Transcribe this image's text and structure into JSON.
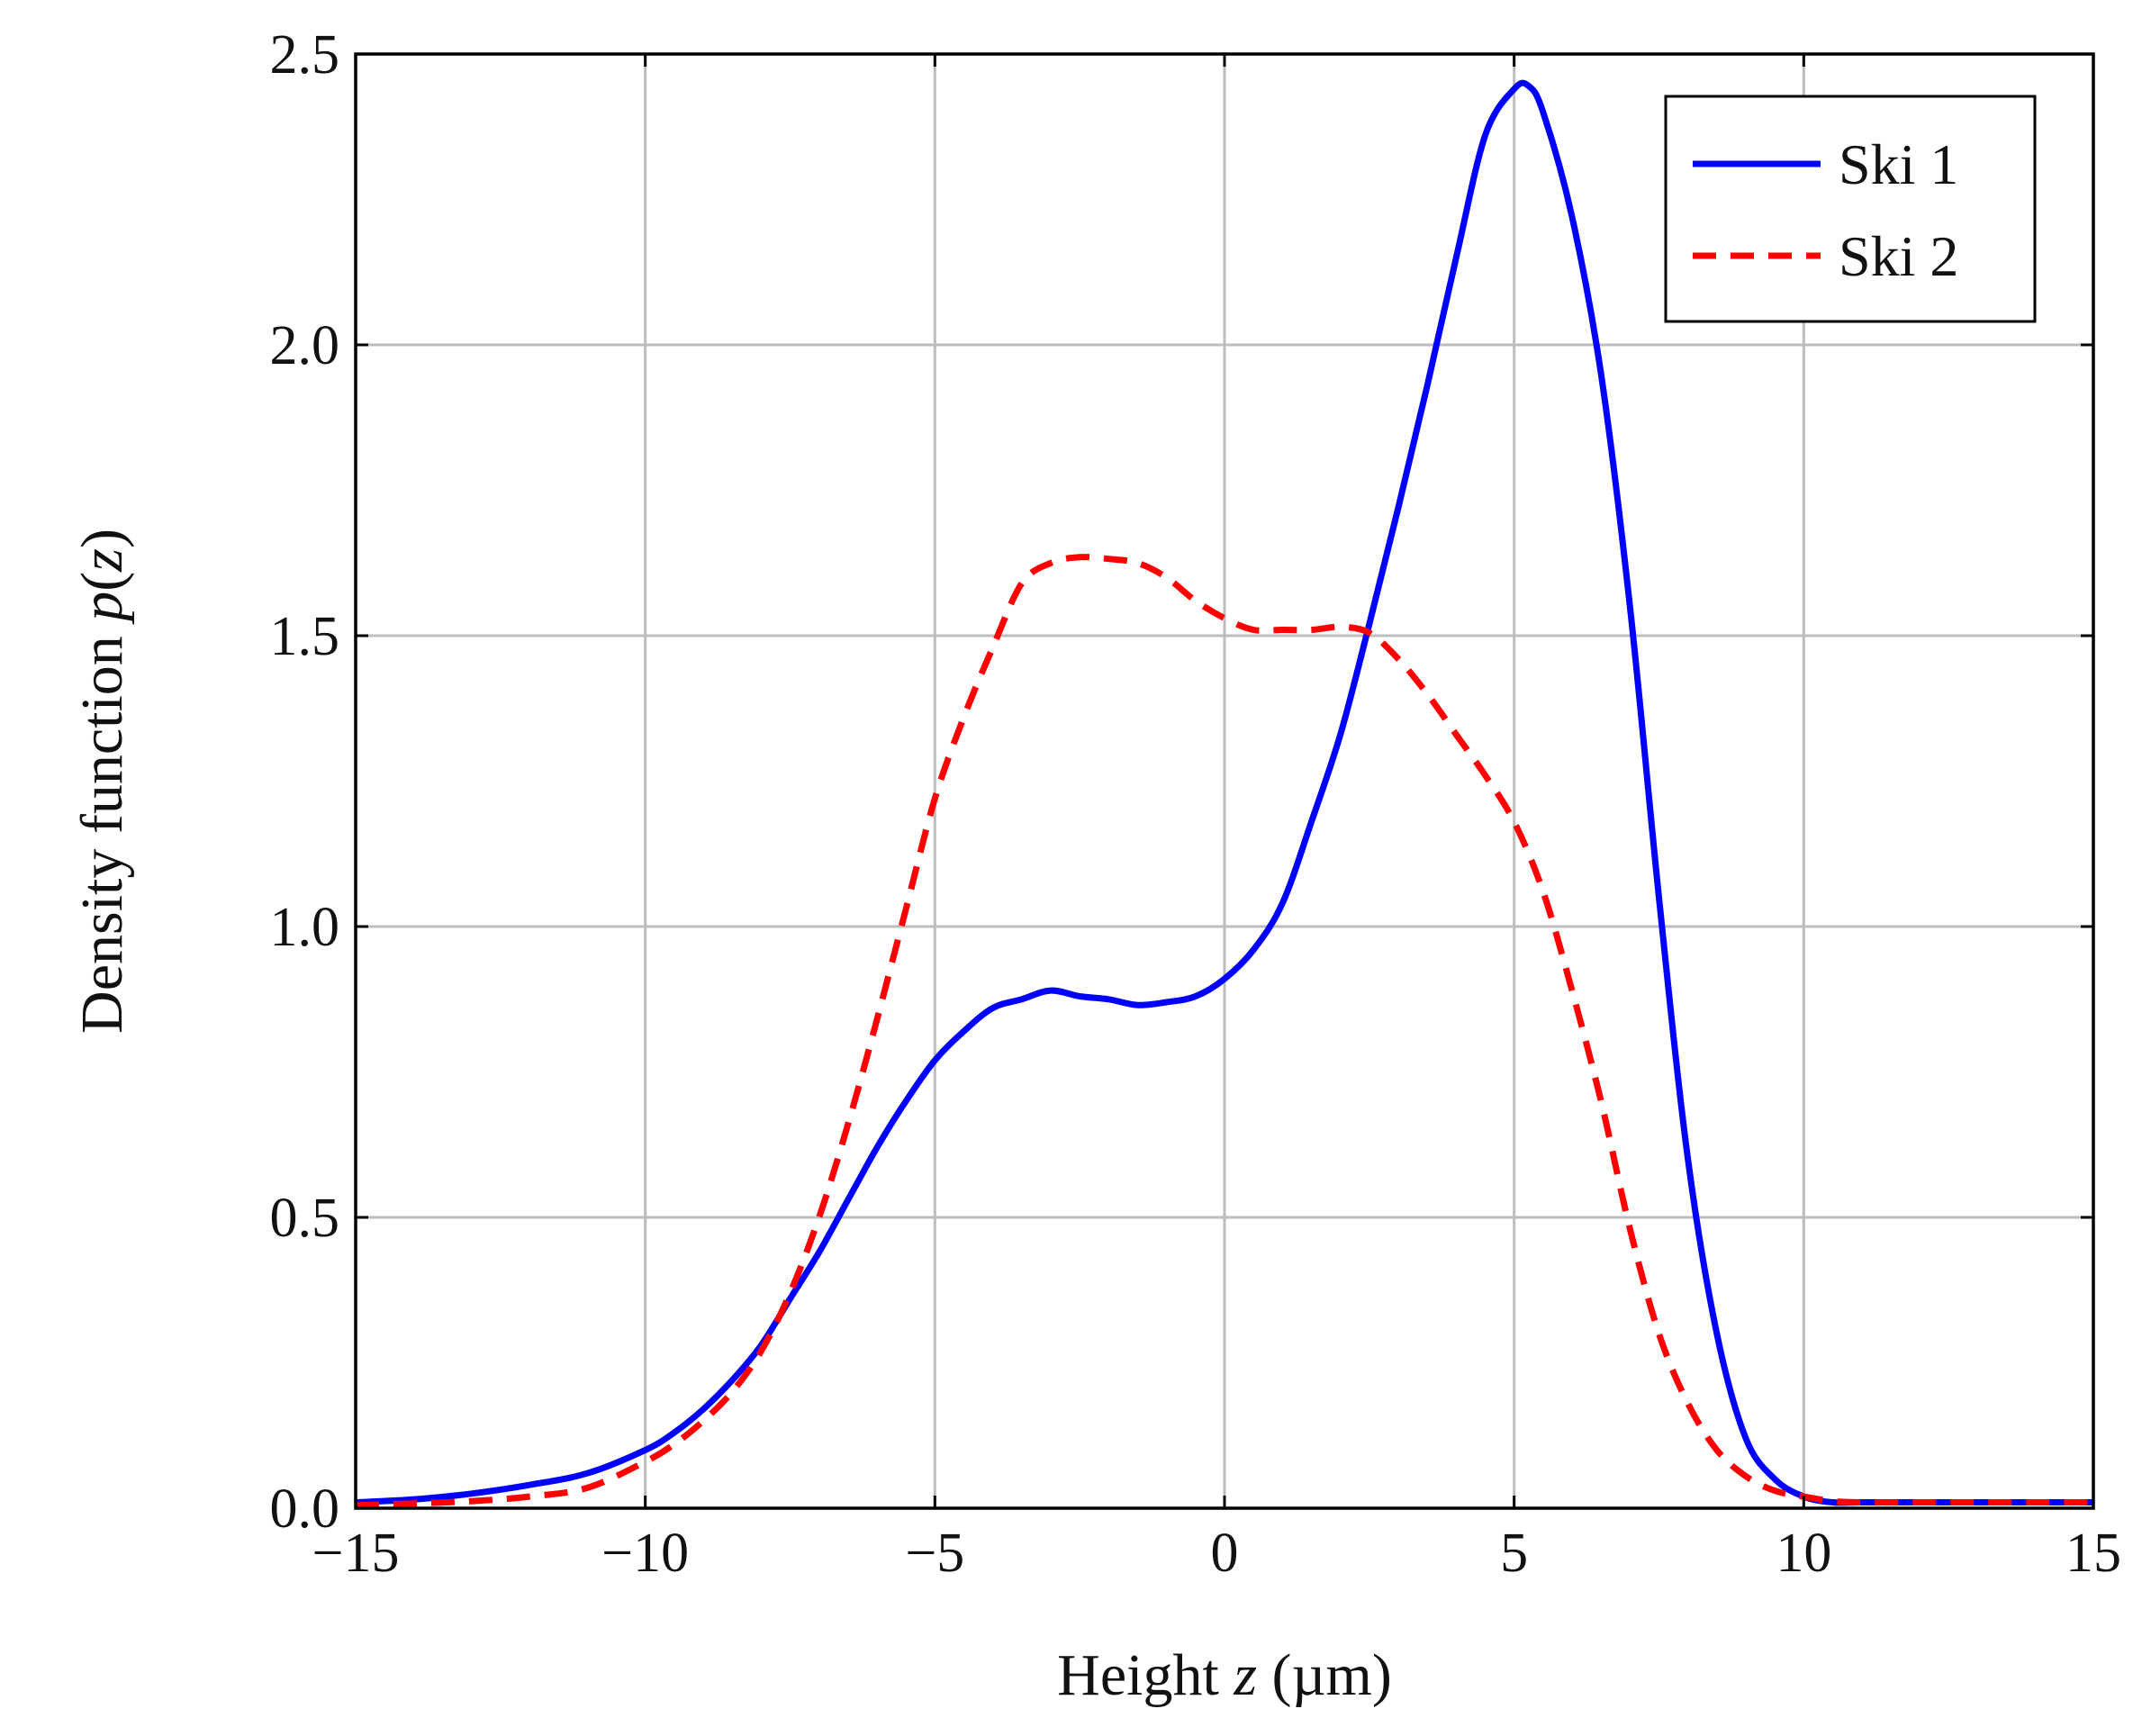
{
  "chart_data": {
    "type": "line",
    "title": "",
    "xlabel": "Height z (µm)",
    "xlabel_parts": {
      "prefix": "Height ",
      "var": "z",
      "suffix": " (µm)"
    },
    "ylabel": "Density function p(z)",
    "ylabel_parts": {
      "prefix": "Density function ",
      "fn": "p",
      "open": "(",
      "var": "z",
      "close": ")"
    },
    "xlim": [
      -15,
      15
    ],
    "ylim": [
      0,
      2.5
    ],
    "xticks": [
      -15,
      -10,
      -5,
      0,
      5,
      10,
      15
    ],
    "xtick_labels": [
      "−15",
      "−10",
      "−5",
      "0",
      "5",
      "10",
      "15"
    ],
    "yticks": [
      0,
      0.5,
      1,
      1.5,
      2,
      2.5
    ],
    "ytick_labels": [
      "0.0",
      "0.5",
      "1.0",
      "1.5",
      "2.0",
      "2.5"
    ],
    "grid": true,
    "legend_position": "top-right",
    "series": [
      {
        "name": "Ski 1",
        "color": "#0000ff",
        "dash": "solid",
        "x": [
          -15,
          -14,
          -13,
          -12,
          -11,
          -10,
          -9.5,
          -9,
          -8.5,
          -8,
          -7.5,
          -7,
          -6.5,
          -6,
          -5.5,
          -5,
          -4.5,
          -4,
          -3.5,
          -3,
          -2.5,
          -2,
          -1.5,
          -1,
          -0.5,
          0,
          0.5,
          1,
          1.5,
          2,
          2.5,
          3,
          3.5,
          4,
          4.5,
          5,
          5.25,
          5.5,
          6,
          6.5,
          7,
          7.5,
          8,
          8.5,
          9,
          9.5,
          10,
          10.5,
          11,
          12,
          13,
          14,
          15
        ],
        "y": [
          0.01,
          0.015,
          0.025,
          0.04,
          0.06,
          0.1,
          0.13,
          0.17,
          0.22,
          0.28,
          0.36,
          0.44,
          0.53,
          0.62,
          0.7,
          0.77,
          0.82,
          0.86,
          0.875,
          0.89,
          0.88,
          0.875,
          0.865,
          0.87,
          0.88,
          0.91,
          0.96,
          1.04,
          1.18,
          1.33,
          1.52,
          1.72,
          1.93,
          2.15,
          2.36,
          2.44,
          2.445,
          2.4,
          2.22,
          1.95,
          1.55,
          1.05,
          0.6,
          0.3,
          0.12,
          0.05,
          0.02,
          0.01,
          0.01,
          0.01,
          0.01,
          0.01,
          0.01
        ]
      },
      {
        "name": "Ski 2",
        "color": "#ff0000",
        "dash": "dashed",
        "x": [
          -15,
          -14,
          -13,
          -12,
          -11,
          -10,
          -9.5,
          -9,
          -8.5,
          -8,
          -7.5,
          -7,
          -6.5,
          -6,
          -5.5,
          -5,
          -4.5,
          -4,
          -3.5,
          -3,
          -2.5,
          -2,
          -1.5,
          -1,
          -0.5,
          0,
          0.5,
          1,
          1.5,
          2,
          2.5,
          3,
          3.5,
          4,
          4.5,
          5,
          5.5,
          6,
          6.5,
          7,
          7.5,
          8,
          8.5,
          9,
          9.5,
          10,
          10.5,
          11,
          12,
          13,
          14,
          15
        ],
        "y": [
          0.005,
          0.008,
          0.012,
          0.02,
          0.035,
          0.08,
          0.11,
          0.15,
          0.2,
          0.27,
          0.37,
          0.5,
          0.66,
          0.84,
          1.03,
          1.22,
          1.36,
          1.48,
          1.59,
          1.625,
          1.635,
          1.632,
          1.625,
          1.6,
          1.56,
          1.53,
          1.51,
          1.51,
          1.51,
          1.515,
          1.505,
          1.46,
          1.4,
          1.33,
          1.26,
          1.18,
          1.06,
          0.89,
          0.7,
          0.48,
          0.3,
          0.18,
          0.1,
          0.055,
          0.03,
          0.02,
          0.012,
          0.01,
          0.01,
          0.01,
          0.01,
          0.01
        ]
      }
    ]
  }
}
